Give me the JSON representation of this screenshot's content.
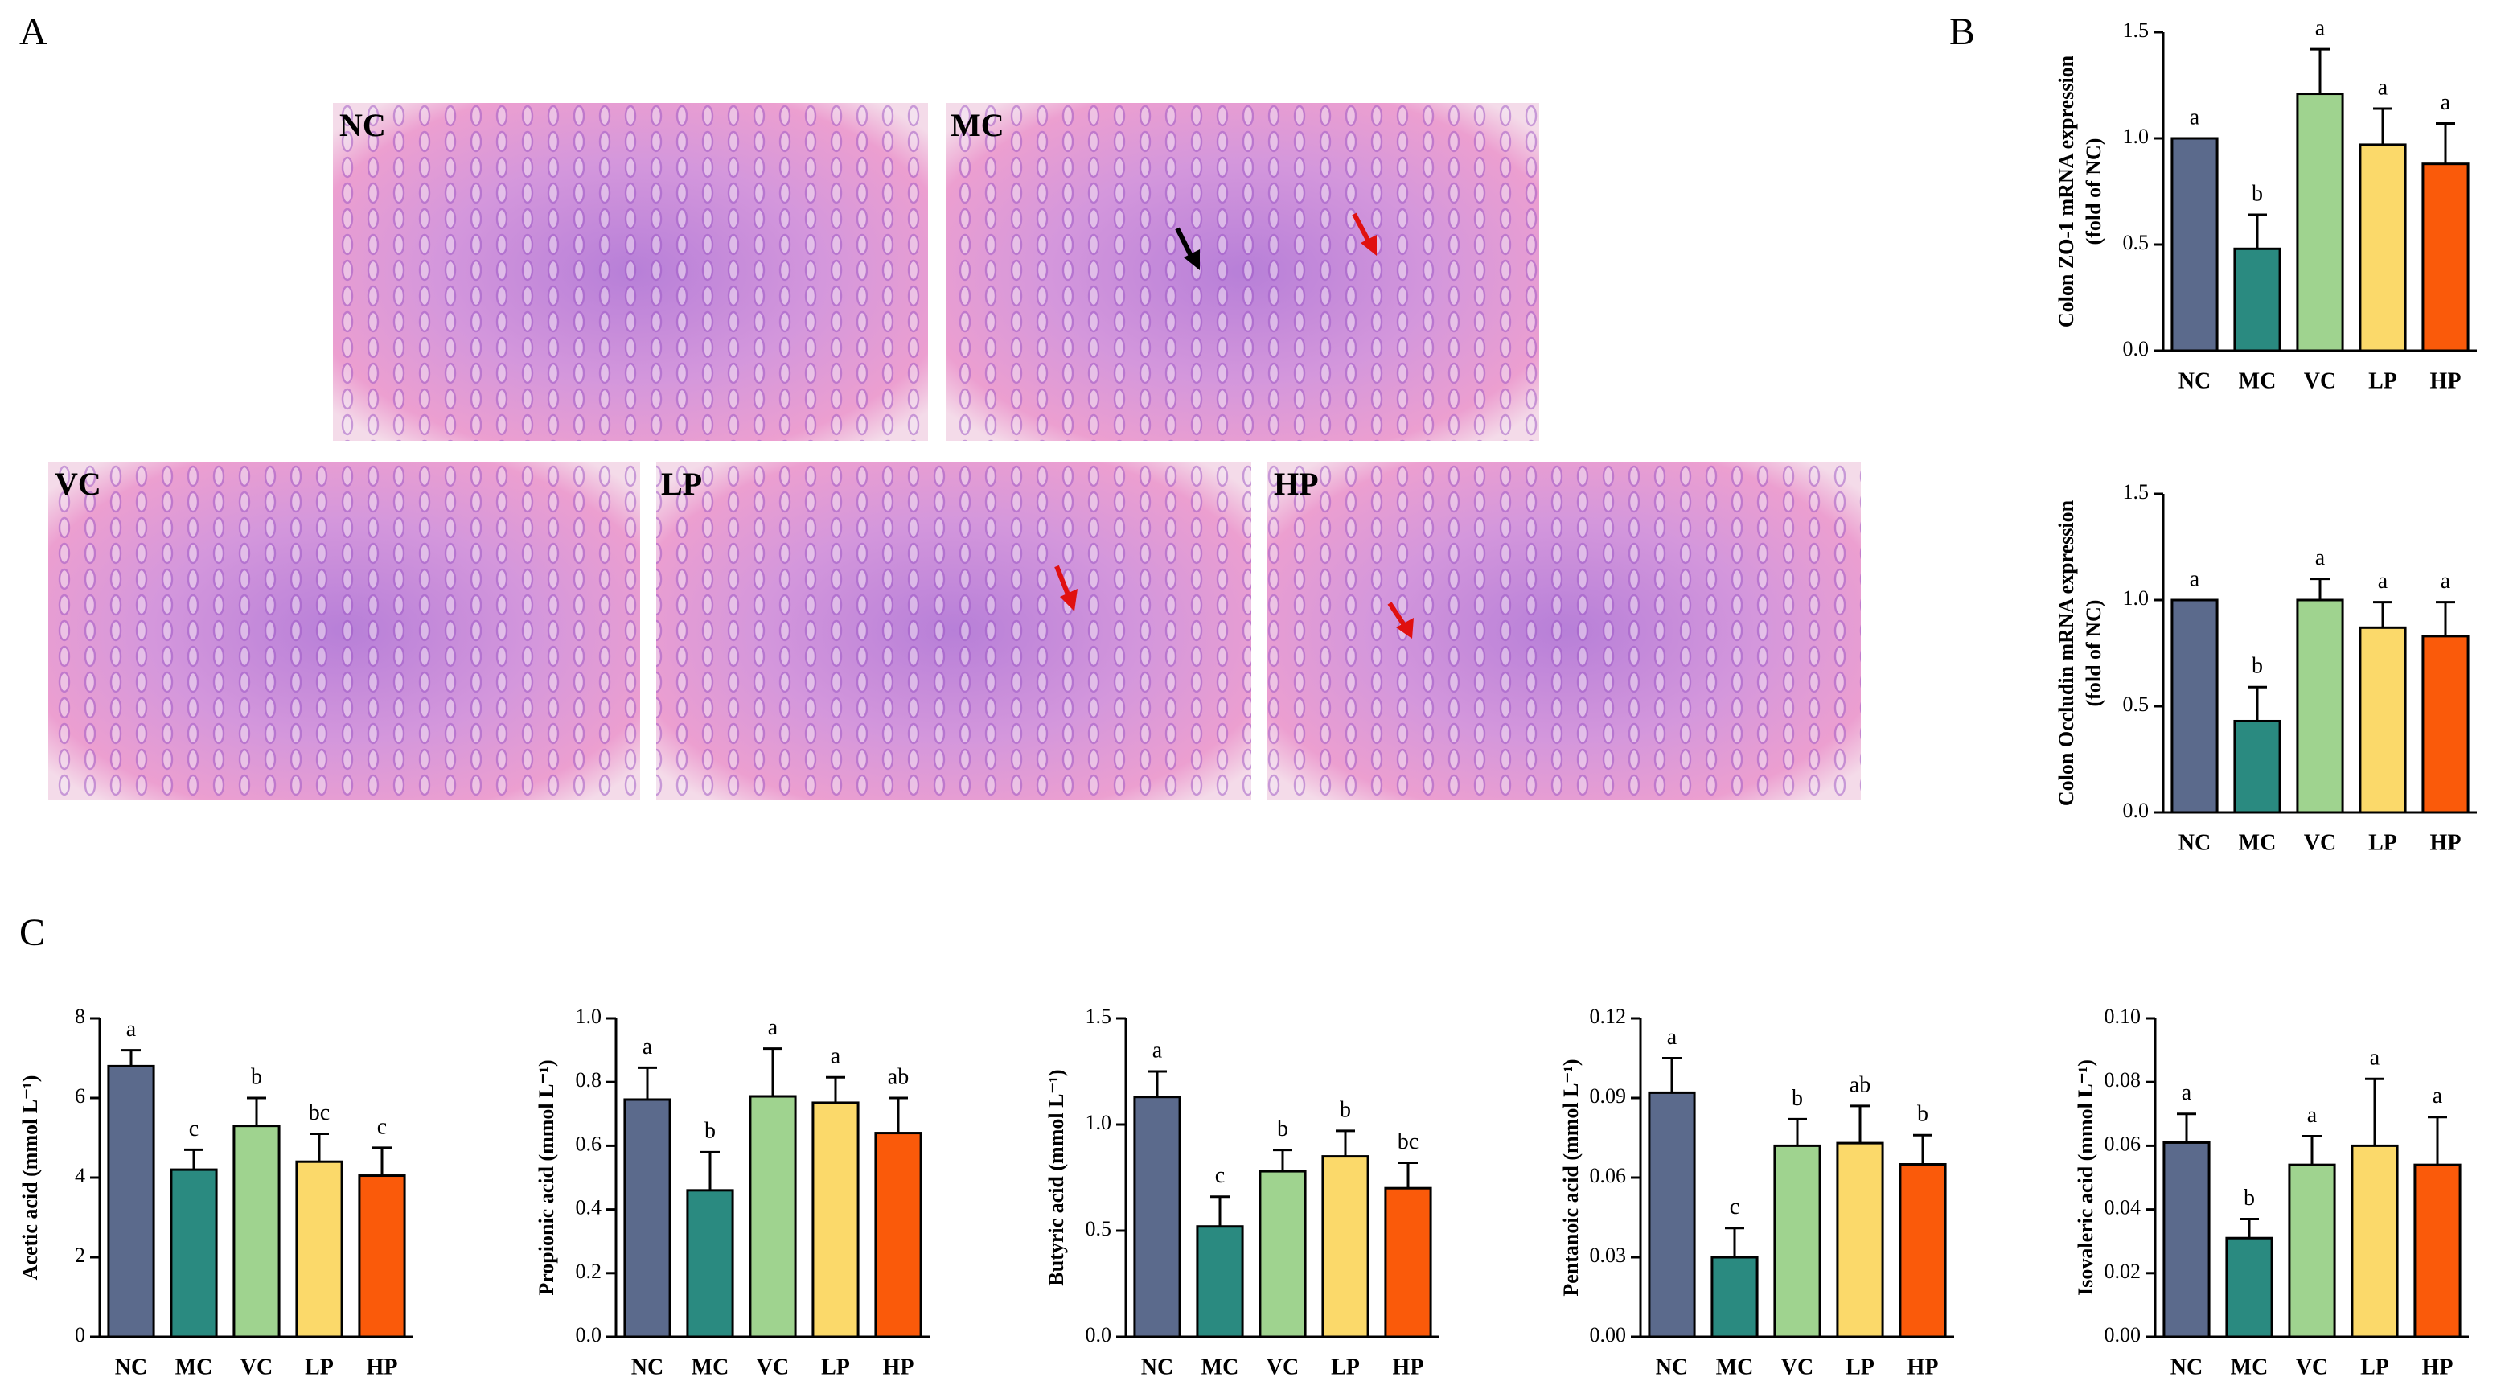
{
  "panel_labels": [
    "A",
    "B",
    "C"
  ],
  "micrographs": [
    {
      "label": "NC"
    },
    {
      "label": "MC"
    },
    {
      "label": "VC"
    },
    {
      "label": "LP"
    },
    {
      "label": "HP"
    }
  ],
  "chart_data": [
    {
      "type": "bar",
      "ylabel": [
        "Colon ZO-1 mRNA expression",
        "(fold of NC)"
      ],
      "categories": [
        "NC",
        "MC",
        "VC",
        "LP",
        "HP"
      ],
      "values": [
        1.0,
        0.48,
        1.21,
        0.97,
        0.88
      ],
      "errors": [
        0,
        0.16,
        0.21,
        0.17,
        0.19
      ],
      "annotations": [
        "a",
        "b",
        "a",
        "a",
        "a"
      ],
      "colors": [
        "#5b6a8c",
        "#2a8a80",
        "#9fd38f",
        "#fbd96a",
        "#fa5a0a"
      ],
      "ylim": [
        0,
        1.5
      ],
      "yticks": [
        {
          "value": 0,
          "label": "0.0"
        },
        0.5,
        {
          "value": 1,
          "label": "1.0"
        },
        1.5
      ]
    },
    {
      "type": "bar",
      "ylabel": [
        "Colon Occludin mRNA expression",
        "(fold of NC)"
      ],
      "categories": [
        "NC",
        "MC",
        "VC",
        "LP",
        "HP"
      ],
      "values": [
        1.0,
        0.43,
        1.0,
        0.87,
        0.83
      ],
      "errors": [
        0,
        0.16,
        0.1,
        0.12,
        0.16
      ],
      "annotations": [
        "a",
        "b",
        "a",
        "a",
        "a"
      ],
      "colors": [
        "#5b6a8c",
        "#2a8a80",
        "#9fd38f",
        "#fbd96a",
        "#fa5a0a"
      ],
      "ylim": [
        0,
        1.5
      ],
      "yticks": [
        {
          "value": 0,
          "label": "0.0"
        },
        0.5,
        {
          "value": 1,
          "label": "1.0"
        },
        1.5
      ]
    },
    {
      "type": "bar",
      "ylabel": [
        "Acetic acid (mmol L⁻¹)"
      ],
      "categories": [
        "NC",
        "MC",
        "VC",
        "LP",
        "HP"
      ],
      "values": [
        6.8,
        4.2,
        5.3,
        4.4,
        4.05
      ],
      "errors": [
        0.4,
        0.5,
        0.7,
        0.7,
        0.7
      ],
      "annotations": [
        "a",
        "c",
        "b",
        "bc",
        "c"
      ],
      "colors": [
        "#5b6a8c",
        "#2a8a80",
        "#9fd38f",
        "#fbd96a",
        "#fa5a0a"
      ],
      "ylim": [
        0,
        8
      ],
      "yticks": [
        0,
        2,
        4,
        6,
        8
      ]
    },
    {
      "type": "bar",
      "ylabel": [
        "Propionic acid (mmol L⁻¹)"
      ],
      "categories": [
        "NC",
        "MC",
        "VC",
        "LP",
        "HP"
      ],
      "values": [
        0.745,
        0.46,
        0.755,
        0.735,
        0.64
      ],
      "errors": [
        0.1,
        0.12,
        0.15,
        0.08,
        0.11
      ],
      "annotations": [
        "a",
        "b",
        "a",
        "a",
        "ab"
      ],
      "colors": [
        "#5b6a8c",
        "#2a8a80",
        "#9fd38f",
        "#fbd96a",
        "#fa5a0a"
      ],
      "ylim": [
        0,
        1.0
      ],
      "yticks": [
        {
          "value": 0,
          "label": "0.0"
        },
        0.2,
        0.4,
        0.6,
        0.8,
        {
          "value": 1,
          "label": "1.0"
        }
      ]
    },
    {
      "type": "bar",
      "ylabel": [
        "Butyric acid (mmol L⁻¹)"
      ],
      "categories": [
        "NC",
        "MC",
        "VC",
        "LP",
        "HP"
      ],
      "values": [
        1.13,
        0.52,
        0.78,
        0.85,
        0.7
      ],
      "errors": [
        0.12,
        0.14,
        0.1,
        0.12,
        0.12
      ],
      "annotations": [
        "a",
        "c",
        "b",
        "b",
        "bc"
      ],
      "colors": [
        "#5b6a8c",
        "#2a8a80",
        "#9fd38f",
        "#fbd96a",
        "#fa5a0a"
      ],
      "ylim": [
        0,
        1.5
      ],
      "yticks": [
        {
          "value": 0,
          "label": "0.0"
        },
        0.5,
        {
          "value": 1,
          "label": "1.0"
        },
        1.5
      ]
    },
    {
      "type": "bar",
      "ylabel": [
        "Pentanoic acid (mmol L⁻¹)"
      ],
      "categories": [
        "NC",
        "MC",
        "VC",
        "LP",
        "HP"
      ],
      "values": [
        0.092,
        0.03,
        0.072,
        0.073,
        0.065
      ],
      "errors": [
        0.013,
        0.011,
        0.01,
        0.014,
        0.011
      ],
      "annotations": [
        "a",
        "c",
        "b",
        "ab",
        "b"
      ],
      "colors": [
        "#5b6a8c",
        "#2a8a80",
        "#9fd38f",
        "#fbd96a",
        "#fa5a0a"
      ],
      "ylim": [
        0,
        0.12
      ],
      "yticks": [
        {
          "value": 0,
          "label": "0.00"
        },
        {
          "value": 0.03,
          "label": "0.03"
        },
        {
          "value": 0.06,
          "label": "0.06"
        },
        {
          "value": 0.09,
          "label": "0.09"
        },
        {
          "value": 0.12,
          "label": "0.12"
        }
      ]
    },
    {
      "type": "bar",
      "ylabel": [
        "Isovaleric acid (mmol L⁻¹)"
      ],
      "categories": [
        "NC",
        "MC",
        "VC",
        "LP",
        "HP"
      ],
      "values": [
        0.061,
        0.031,
        0.054,
        0.06,
        0.054
      ],
      "errors": [
        0.009,
        0.006,
        0.009,
        0.021,
        0.015
      ],
      "annotations": [
        "a",
        "b",
        "a",
        "a",
        "a"
      ],
      "colors": [
        "#5b6a8c",
        "#2a8a80",
        "#9fd38f",
        "#fbd96a",
        "#fa5a0a"
      ],
      "ylim": [
        0,
        0.1
      ],
      "yticks": [
        {
          "value": 0,
          "label": "0.00"
        },
        0.02,
        0.04,
        0.06,
        0.08,
        {
          "value": 0.1,
          "label": "0.10"
        }
      ]
    }
  ]
}
